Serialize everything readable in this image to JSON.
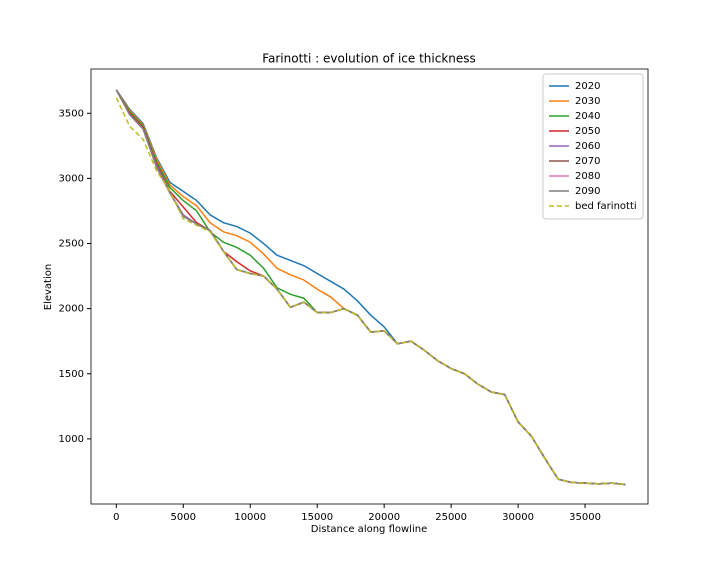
{
  "chart_data": {
    "type": "line",
    "title": "Farinotti : evolution of ice thickness",
    "xlabel": "Distance along flowline",
    "ylabel": "Elevation",
    "x": [
      0,
      1000,
      2000,
      3000,
      4000,
      5000,
      6000,
      7000,
      8000,
      9000,
      10000,
      11000,
      12000,
      13000,
      14000,
      15000,
      16000,
      17000,
      18000,
      19000,
      20000,
      21000,
      22000,
      23000,
      24000,
      25000,
      26000,
      27000,
      28000,
      29000,
      30000,
      31000,
      32000,
      33000,
      34000,
      35000,
      36000,
      37000,
      38000
    ],
    "series": [
      {
        "name": "2020",
        "color": "#1f77b4",
        "linestyle": "solid",
        "values": [
          3680,
          3530,
          3420,
          3160,
          2970,
          2900,
          2830,
          2720,
          2660,
          2630,
          2580,
          2500,
          2410,
          2370,
          2330,
          2270,
          2210,
          2150,
          2060,
          1950,
          1860,
          1730,
          1750,
          1680,
          1600,
          1540,
          1500,
          1420,
          1360,
          1340,
          1130,
          1020,
          850,
          690,
          665,
          660,
          655,
          660,
          650
        ]
      },
      {
        "name": "2030",
        "color": "#ff7f0e",
        "linestyle": "solid",
        "values": [
          3680,
          3520,
          3410,
          3150,
          2950,
          2860,
          2790,
          2660,
          2590,
          2560,
          2510,
          2420,
          2310,
          2260,
          2220,
          2150,
          2090,
          2000,
          1950,
          1820,
          1830,
          1730,
          1750,
          1680,
          1600,
          1540,
          1500,
          1420,
          1360,
          1340,
          1130,
          1020,
          850,
          690,
          665,
          660,
          655,
          660,
          650
        ]
      },
      {
        "name": "2040",
        "color": "#2ca02c",
        "linestyle": "solid",
        "values": [
          3680,
          3510,
          3400,
          3130,
          2930,
          2830,
          2750,
          2590,
          2510,
          2470,
          2410,
          2310,
          2160,
          2110,
          2080,
          1970,
          1970,
          2000,
          1950,
          1820,
          1830,
          1730,
          1750,
          1680,
          1600,
          1540,
          1500,
          1420,
          1360,
          1340,
          1130,
          1020,
          850,
          690,
          665,
          660,
          655,
          660,
          650
        ]
      },
      {
        "name": "2050",
        "color": "#d62728",
        "linestyle": "solid",
        "values": [
          3680,
          3500,
          3390,
          3110,
          2900,
          2780,
          2660,
          2600,
          2440,
          2360,
          2290,
          2250,
          2150,
          2010,
          2050,
          1970,
          1970,
          2000,
          1950,
          1820,
          1830,
          1730,
          1750,
          1680,
          1600,
          1540,
          1500,
          1420,
          1360,
          1340,
          1130,
          1020,
          850,
          690,
          665,
          660,
          655,
          660,
          650
        ]
      },
      {
        "name": "2060",
        "color": "#9467bd",
        "linestyle": "solid",
        "values": [
          3680,
          3490,
          3380,
          3100,
          2890,
          2720,
          2650,
          2600,
          2440,
          2300,
          2270,
          2250,
          2150,
          2010,
          2050,
          1970,
          1970,
          2000,
          1950,
          1820,
          1830,
          1730,
          1750,
          1680,
          1600,
          1540,
          1500,
          1420,
          1360,
          1340,
          1130,
          1020,
          850,
          690,
          665,
          660,
          655,
          660,
          650
        ]
      },
      {
        "name": "2070",
        "color": "#8c564b",
        "linestyle": "solid",
        "values": [
          3680,
          3490,
          3380,
          3090,
          2890,
          2710,
          2650,
          2600,
          2440,
          2300,
          2270,
          2250,
          2150,
          2010,
          2050,
          1970,
          1970,
          2000,
          1950,
          1820,
          1830,
          1730,
          1750,
          1680,
          1600,
          1540,
          1500,
          1420,
          1360,
          1340,
          1130,
          1020,
          850,
          690,
          665,
          660,
          655,
          660,
          650
        ]
      },
      {
        "name": "2080",
        "color": "#e377c2",
        "linestyle": "solid",
        "values": [
          3680,
          3490,
          3380,
          3090,
          2890,
          2710,
          2650,
          2600,
          2440,
          2300,
          2270,
          2250,
          2150,
          2010,
          2050,
          1970,
          1970,
          2000,
          1950,
          1820,
          1830,
          1730,
          1750,
          1680,
          1600,
          1540,
          1500,
          1420,
          1360,
          1340,
          1130,
          1020,
          850,
          690,
          665,
          660,
          655,
          660,
          650
        ]
      },
      {
        "name": "2090",
        "color": "#7f7f7f",
        "linestyle": "solid",
        "values": [
          3680,
          3490,
          3380,
          3090,
          2890,
          2710,
          2650,
          2600,
          2440,
          2300,
          2270,
          2250,
          2150,
          2010,
          2050,
          1970,
          1970,
          2000,
          1950,
          1820,
          1830,
          1730,
          1750,
          1680,
          1600,
          1540,
          1500,
          1420,
          1360,
          1340,
          1130,
          1020,
          850,
          690,
          665,
          660,
          655,
          660,
          650
        ]
      },
      {
        "name": "bed farinotti",
        "color": "#bcbd22",
        "linestyle": "dashed",
        "values": [
          3620,
          3400,
          3300,
          3060,
          2900,
          2690,
          2640,
          2590,
          2440,
          2300,
          2270,
          2250,
          2150,
          2010,
          2050,
          1970,
          1970,
          2000,
          1950,
          1820,
          1830,
          1730,
          1750,
          1680,
          1600,
          1540,
          1500,
          1420,
          1360,
          1340,
          1130,
          1020,
          850,
          690,
          665,
          660,
          655,
          660,
          650
        ]
      }
    ],
    "xlim": [
      -1890,
      39700
    ],
    "ylim": [
      500,
      3840
    ],
    "xticks": [
      0,
      5000,
      10000,
      15000,
      20000,
      25000,
      30000,
      35000
    ],
    "yticks": [
      1000,
      1500,
      2000,
      2500,
      3000,
      3500
    ],
    "grid": false,
    "legend": "upper right"
  }
}
